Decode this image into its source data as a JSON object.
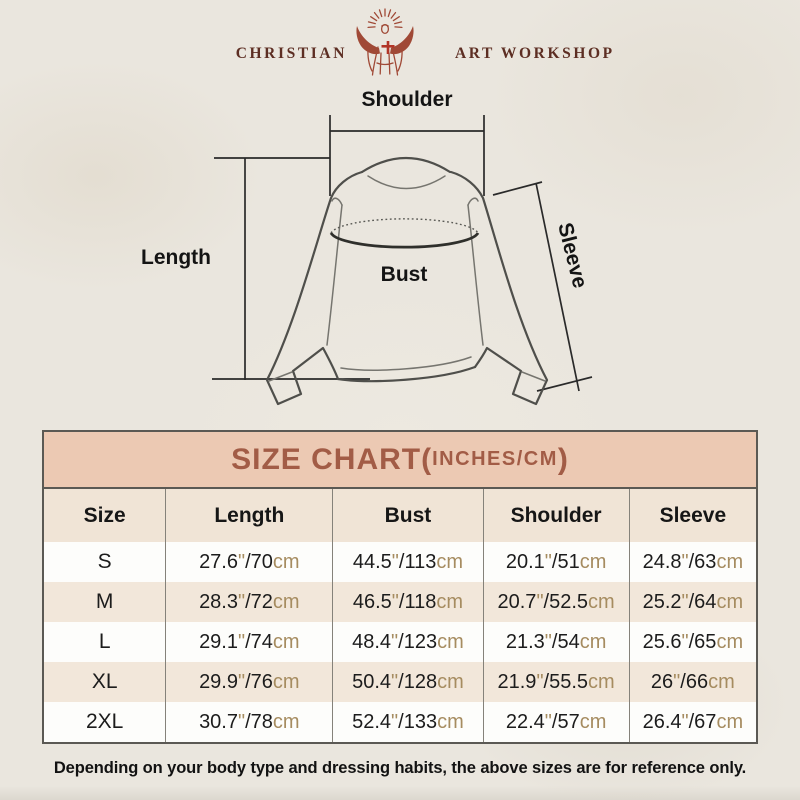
{
  "logo": {
    "brand_left": "CHRISTIAN",
    "brand_right": "ART WORKSHOP",
    "figure_icon": "jesus-with-rays-icon",
    "accent_color": "#a04936",
    "text_color": "#5d2e23"
  },
  "diagram": {
    "labels": {
      "shoulder": "Shoulder",
      "length": "Length",
      "bust": "Bust",
      "sleeve": "Sleeve"
    }
  },
  "size_chart": {
    "title": "SIZE CHART",
    "title_open": "(",
    "title_unit": "INCHES/CM",
    "title_close": ")",
    "title_bg": "#ecc9b3",
    "title_color": "#a25c46",
    "alt_row_bg": "#f2e7da",
    "unit_color": "#a68c60",
    "columns": [
      "Size",
      "Length",
      "Bust",
      "Shoulder",
      "Sleeve"
    ],
    "units": {
      "inch_mark": "\"",
      "separator": "/",
      "cm_label": "cm"
    },
    "rows": [
      {
        "size": "S",
        "length": {
          "in": "27.6",
          "cm": "70"
        },
        "bust": {
          "in": "44.5",
          "cm": "113"
        },
        "shoulder": {
          "in": "20.1",
          "cm": "51"
        },
        "sleeve": {
          "in": "24.8",
          "cm": "63"
        }
      },
      {
        "size": "M",
        "length": {
          "in": "28.3",
          "cm": "72"
        },
        "bust": {
          "in": "46.5",
          "cm": "118"
        },
        "shoulder": {
          "in": "20.7",
          "cm": "52.5"
        },
        "sleeve": {
          "in": "25.2",
          "cm": "64"
        }
      },
      {
        "size": "L",
        "length": {
          "in": "29.1",
          "cm": "74"
        },
        "bust": {
          "in": "48.4",
          "cm": "123"
        },
        "shoulder": {
          "in": "21.3",
          "cm": "54"
        },
        "sleeve": {
          "in": "25.6",
          "cm": "65"
        }
      },
      {
        "size": "XL",
        "length": {
          "in": "29.9",
          "cm": "76"
        },
        "bust": {
          "in": "50.4",
          "cm": "128"
        },
        "shoulder": {
          "in": "21.9",
          "cm": "55.5"
        },
        "sleeve": {
          "in": "26",
          "cm": "66"
        }
      },
      {
        "size": "2XL",
        "length": {
          "in": "30.7",
          "cm": "78"
        },
        "bust": {
          "in": "52.4",
          "cm": "133"
        },
        "shoulder": {
          "in": "22.4",
          "cm": "57"
        },
        "sleeve": {
          "in": "26.4",
          "cm": "67"
        }
      }
    ]
  },
  "chart_data": {
    "type": "table",
    "title": "SIZE CHART(INCHES/CM)",
    "columns": [
      "Size",
      "Length",
      "Bust",
      "Shoulder",
      "Sleeve"
    ],
    "rows": [
      [
        "S",
        "27.6\"/70cm",
        "44.5\"/113cm",
        "20.1\"/51cm",
        "24.8\"/63cm"
      ],
      [
        "M",
        "28.3\"/72cm",
        "46.5\"/118cm",
        "20.7\"/52.5cm",
        "25.2\"/64cm"
      ],
      [
        "L",
        "29.1\"/74cm",
        "48.4\"/123cm",
        "21.3\"/54cm",
        "25.6\"/65cm"
      ],
      [
        "XL",
        "29.9\"/76cm",
        "50.4\"/128cm",
        "21.9\"/55.5cm",
        "26\"/66cm"
      ],
      [
        "2XL",
        "30.7\"/78cm",
        "52.4\"/133cm",
        "22.4\"/57cm",
        "26.4\"/67cm"
      ]
    ]
  },
  "footnote": "Depending on your body type and dressing habits, the above sizes are for reference only."
}
